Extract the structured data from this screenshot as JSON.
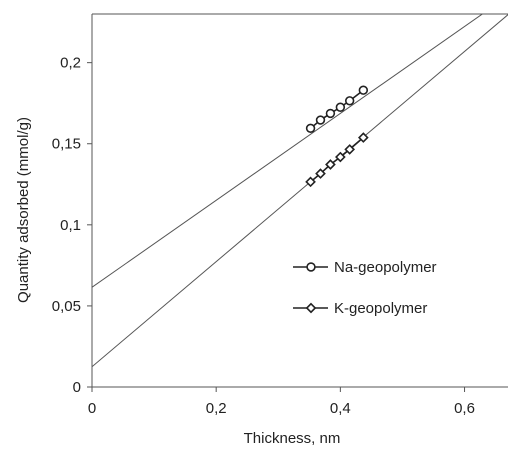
{
  "chart_data": {
    "type": "line",
    "xlabel": "Thickness, nm",
    "ylabel": "Quantity adsorbed (mmol/g)",
    "xlim": [
      0,
      0.67
    ],
    "ylim": [
      0,
      0.23
    ],
    "xticks": [
      0,
      0.2,
      0.4,
      0.6
    ],
    "xtick_labels": [
      "0",
      "0,2",
      "0,4",
      "0,6"
    ],
    "yticks": [
      0,
      0.05,
      0.1,
      0.15,
      0.2
    ],
    "ytick_labels": [
      "0",
      "0,05",
      "0,1",
      "0,15",
      "0,2"
    ],
    "grid": false,
    "legend_position": "center-right",
    "series": [
      {
        "name": "Na-geopolymer",
        "marker": "circle",
        "color": "#333333",
        "x": [
          0.352,
          0.368,
          0.384,
          0.4,
          0.415,
          0.437
        ],
        "y": [
          0.1595,
          0.1646,
          0.1687,
          0.1725,
          0.1765,
          0.183
        ],
        "fit": {
          "slope": 0.268,
          "intercept": 0.0615
        }
      },
      {
        "name": "K-geopolymer",
        "marker": "diamond",
        "color": "#333333",
        "x": [
          0.352,
          0.368,
          0.384,
          0.4,
          0.415,
          0.437
        ],
        "y": [
          0.1265,
          0.1316,
          0.1372,
          0.1418,
          0.1465,
          0.1538
        ],
        "fit": {
          "slope": 0.324,
          "intercept": 0.0125
        }
      }
    ]
  }
}
